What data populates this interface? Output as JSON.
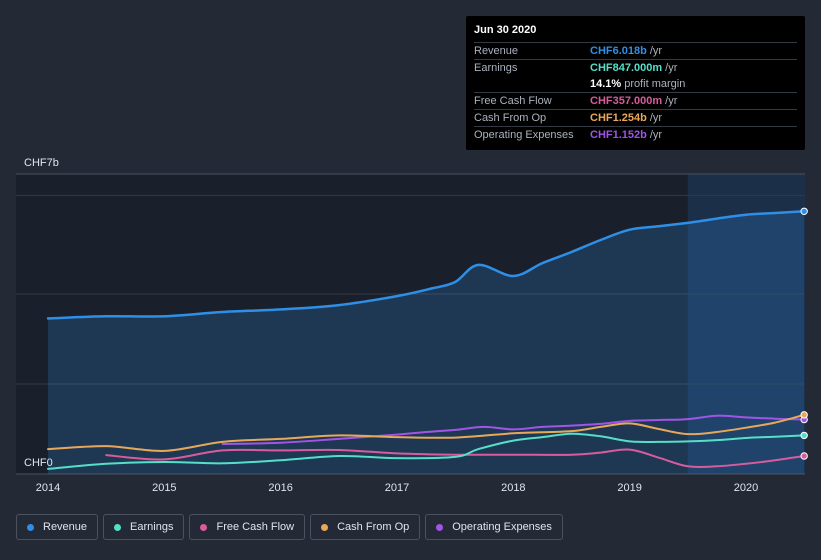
{
  "chart_data": {
    "type": "line",
    "currency": "CHF",
    "y_top_label": "CHF7b",
    "y_bottom_label": "CHF0",
    "ylim": [
      0,
      7
    ],
    "xlim": [
      2013.9,
      2020.5
    ],
    "x_ticks": [
      {
        "value": 2014,
        "label": "2014"
      },
      {
        "value": 2015,
        "label": "2015"
      },
      {
        "value": 2016,
        "label": "2016"
      },
      {
        "value": 2017,
        "label": "2017"
      },
      {
        "value": 2018,
        "label": "2018"
      },
      {
        "value": 2019,
        "label": "2019"
      },
      {
        "value": 2020,
        "label": "2020"
      }
    ],
    "highlight_start": 2019.5,
    "series": [
      {
        "name": "Revenue",
        "color": "#2f8fe6",
        "x": [
          2014.0,
          2014.5,
          2015.0,
          2015.5,
          2016.0,
          2016.5,
          2017.0,
          2017.3,
          2017.5,
          2017.7,
          2018.0,
          2018.25,
          2018.5,
          2018.75,
          2019.0,
          2019.25,
          2019.5,
          2019.75,
          2020.0,
          2020.25,
          2020.5
        ],
        "values": [
          3.63,
          3.68,
          3.68,
          3.78,
          3.84,
          3.94,
          4.15,
          4.33,
          4.48,
          4.88,
          4.62,
          4.92,
          5.18,
          5.46,
          5.7,
          5.78,
          5.86,
          5.96,
          6.05,
          6.09,
          6.13
        ]
      },
      {
        "name": "Earnings",
        "color": "#55dfc9",
        "x": [
          2014.0,
          2014.5,
          2015.0,
          2015.5,
          2016.0,
          2016.5,
          2017.0,
          2017.5,
          2017.7,
          2018.0,
          2018.25,
          2018.5,
          2018.75,
          2019.0,
          2019.25,
          2019.5,
          2019.75,
          2020.0,
          2020.25,
          2020.5
        ],
        "values": [
          0.12,
          0.24,
          0.28,
          0.25,
          0.32,
          0.42,
          0.37,
          0.4,
          0.58,
          0.78,
          0.86,
          0.94,
          0.88,
          0.76,
          0.75,
          0.76,
          0.79,
          0.84,
          0.87,
          0.9
        ]
      },
      {
        "name": "Free Cash Flow",
        "color": "#d85c9c",
        "x": [
          2014.5,
          2015.0,
          2015.5,
          2016.0,
          2016.5,
          2017.0,
          2017.5,
          2018.0,
          2018.5,
          2018.75,
          2019.0,
          2019.25,
          2019.5,
          2019.75,
          2020.0,
          2020.25,
          2020.5
        ],
        "values": [
          0.44,
          0.34,
          0.55,
          0.55,
          0.56,
          0.48,
          0.45,
          0.45,
          0.45,
          0.5,
          0.57,
          0.38,
          0.18,
          0.18,
          0.24,
          0.32,
          0.42
        ]
      },
      {
        "name": "Cash From Op",
        "color": "#e8a85a",
        "x": [
          2014.0,
          2014.5,
          2015.0,
          2015.5,
          2016.0,
          2016.5,
          2017.0,
          2017.5,
          2018.0,
          2018.5,
          2018.75,
          2019.0,
          2019.25,
          2019.5,
          2019.75,
          2020.0,
          2020.25,
          2020.5
        ],
        "values": [
          0.58,
          0.65,
          0.54,
          0.75,
          0.82,
          0.9,
          0.86,
          0.85,
          0.95,
          1.0,
          1.1,
          1.18,
          1.05,
          0.93,
          0.98,
          1.08,
          1.2,
          1.38
        ]
      },
      {
        "name": "Operating Expenses",
        "color": "#a055e6",
        "x": [
          2015.5,
          2016.0,
          2016.5,
          2017.0,
          2017.25,
          2017.5,
          2017.75,
          2018.0,
          2018.25,
          2018.5,
          2018.75,
          2019.0,
          2019.25,
          2019.5,
          2019.75,
          2020.0,
          2020.25,
          2020.5
        ],
        "values": [
          0.7,
          0.73,
          0.82,
          0.92,
          0.98,
          1.03,
          1.1,
          1.04,
          1.1,
          1.13,
          1.17,
          1.24,
          1.26,
          1.28,
          1.36,
          1.32,
          1.29,
          1.27
        ]
      }
    ]
  },
  "tooltip": {
    "date": "Jun 30 2020",
    "rows": [
      {
        "label": "Revenue",
        "value": "CHF6.018b",
        "unit": "/yr",
        "color": "#2f8fe6"
      },
      {
        "label": "Earnings",
        "value": "CHF847.000m",
        "unit": "/yr",
        "color": "#55dfc9"
      },
      {
        "label": "",
        "value": "14.1%",
        "unit": "profit margin",
        "color": "#ffffff"
      },
      {
        "label": "Free Cash Flow",
        "value": "CHF357.000m",
        "unit": "/yr",
        "color": "#d85c9c"
      },
      {
        "label": "Cash From Op",
        "value": "CHF1.254b",
        "unit": "/yr",
        "color": "#e8a85a"
      },
      {
        "label": "Operating Expenses",
        "value": "CHF1.152b",
        "unit": "/yr",
        "color": "#a055e6"
      }
    ]
  },
  "legend": [
    {
      "label": "Revenue",
      "color": "#2f8fe6"
    },
    {
      "label": "Earnings",
      "color": "#55dfc9"
    },
    {
      "label": "Free Cash Flow",
      "color": "#d85c9c"
    },
    {
      "label": "Cash From Op",
      "color": "#e8a85a"
    },
    {
      "label": "Operating Expenses",
      "color": "#a055e6"
    }
  ]
}
